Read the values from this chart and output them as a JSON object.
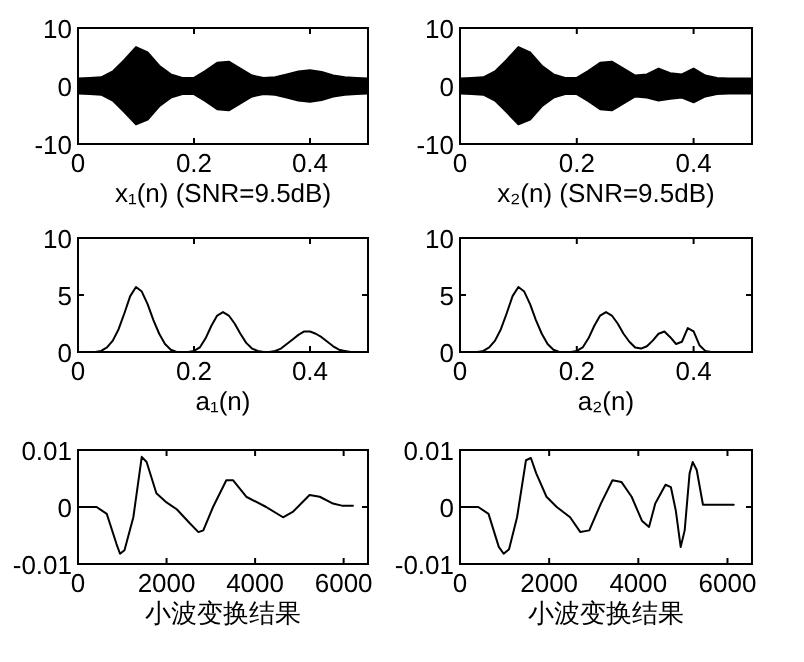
{
  "chart_data": [
    {
      "type": "area",
      "xlabel": "x₁(n) (SNR=9.5dB)",
      "x": [
        0,
        0.02,
        0.04,
        0.06,
        0.08,
        0.1,
        0.12,
        0.14,
        0.16,
        0.18,
        0.2,
        0.22,
        0.24,
        0.26,
        0.28,
        0.3,
        0.32,
        0.34,
        0.36,
        0.38,
        0.4,
        0.42,
        0.44,
        0.46,
        0.48,
        0.5
      ],
      "xlim": [
        0,
        0.5
      ],
      "ylim": [
        -10,
        10
      ],
      "xticks": [
        0,
        0.2,
        0.4
      ],
      "yticks": [
        -10,
        0,
        10
      ],
      "series": [
        {
          "color": "#000000",
          "values": [
            1.3,
            1.4,
            1.5,
            2.5,
            4.5,
            6.7,
            5.8,
            3.5,
            2,
            1.4,
            1.4,
            2.6,
            4,
            4.2,
            3,
            1.8,
            1.4,
            1.5,
            2,
            2.5,
            2.7,
            2.4,
            1.8,
            1.5,
            1.4,
            1.3
          ]
        },
        {
          "color": "#000000",
          "values": [
            -1.3,
            -1.4,
            -1.5,
            -2.5,
            -4.5,
            -6.6,
            -5.8,
            -3.5,
            -2,
            -1.4,
            -1.4,
            -2.6,
            -4,
            -4.2,
            -3,
            -1.8,
            -1.4,
            -1.5,
            -2,
            -2.5,
            -2.7,
            -2.4,
            -1.8,
            -1.5,
            -1.4,
            -1.3
          ]
        }
      ]
    },
    {
      "type": "area",
      "xlabel": "x₂(n) (SNR=9.5dB)",
      "x": [
        0,
        0.02,
        0.04,
        0.06,
        0.08,
        0.1,
        0.12,
        0.14,
        0.16,
        0.18,
        0.2,
        0.22,
        0.24,
        0.26,
        0.28,
        0.3,
        0.32,
        0.34,
        0.36,
        0.38,
        0.4,
        0.42,
        0.44,
        0.46,
        0.48,
        0.5
      ],
      "xlim": [
        0,
        0.5
      ],
      "ylim": [
        -10,
        10
      ],
      "xticks": [
        0,
        0.2,
        0.4
      ],
      "yticks": [
        -10,
        0,
        10
      ],
      "series": [
        {
          "color": "#000000",
          "values": [
            1.3,
            1.4,
            1.5,
            2.5,
            4.5,
            6.7,
            5.8,
            3.5,
            2,
            1.4,
            1.4,
            2.6,
            4,
            4.2,
            3,
            1.8,
            2,
            3,
            2.2,
            2,
            3,
            1.8,
            1.4,
            1.3,
            1.3,
            1.3
          ]
        },
        {
          "color": "#000000",
          "values": [
            -1.3,
            -1.4,
            -1.5,
            -2.5,
            -4.5,
            -6.6,
            -5.8,
            -3.5,
            -2,
            -1.4,
            -1.4,
            -2.6,
            -4,
            -4.2,
            -3,
            -1.8,
            -2,
            -2.5,
            -2.2,
            -2,
            -2.8,
            -1.8,
            -1.4,
            -1.3,
            -1.3,
            -1.3
          ]
        }
      ]
    },
    {
      "type": "line",
      "xlabel": "a₁(n)",
      "x": [
        0,
        0.01,
        0.02,
        0.03,
        0.04,
        0.05,
        0.06,
        0.07,
        0.08,
        0.09,
        0.1,
        0.11,
        0.12,
        0.13,
        0.14,
        0.15,
        0.16,
        0.17,
        0.18,
        0.19,
        0.2,
        0.21,
        0.22,
        0.23,
        0.24,
        0.25,
        0.26,
        0.27,
        0.28,
        0.29,
        0.3,
        0.31,
        0.32,
        0.33,
        0.34,
        0.35,
        0.36,
        0.37,
        0.38,
        0.39,
        0.4,
        0.41,
        0.42,
        0.43,
        0.44,
        0.45,
        0.46,
        0.47,
        0.48,
        0.49,
        0.5
      ],
      "xlim": [
        0,
        0.5
      ],
      "ylim": [
        0,
        10
      ],
      "xticks": [
        0,
        0.2,
        0.4
      ],
      "yticks": [
        0,
        5,
        10
      ],
      "series": [
        {
          "color": "#000000",
          "values": [
            0,
            0,
            0,
            0,
            0.1,
            0.4,
            1,
            2,
            3.4,
            4.9,
            5.7,
            5.3,
            4.2,
            2.8,
            1.6,
            0.7,
            0.2,
            0,
            0,
            0,
            0.1,
            0.4,
            1.2,
            2.3,
            3.2,
            3.5,
            3.2,
            2.5,
            1.6,
            0.8,
            0.3,
            0.1,
            0,
            0,
            0.1,
            0.3,
            0.7,
            1.1,
            1.5,
            1.8,
            1.8,
            1.6,
            1.3,
            0.9,
            0.5,
            0.2,
            0.1,
            0,
            0,
            0,
            0
          ]
        }
      ]
    },
    {
      "type": "line",
      "xlabel": "a₂(n)",
      "x": [
        0,
        0.01,
        0.02,
        0.03,
        0.04,
        0.05,
        0.06,
        0.07,
        0.08,
        0.09,
        0.1,
        0.11,
        0.12,
        0.13,
        0.14,
        0.15,
        0.16,
        0.17,
        0.18,
        0.19,
        0.2,
        0.21,
        0.22,
        0.23,
        0.24,
        0.25,
        0.26,
        0.27,
        0.28,
        0.29,
        0.3,
        0.31,
        0.32,
        0.33,
        0.34,
        0.35,
        0.36,
        0.37,
        0.38,
        0.39,
        0.4,
        0.41,
        0.42,
        0.43,
        0.44,
        0.45,
        0.46,
        0.47,
        0.48,
        0.49,
        0.5
      ],
      "xlim": [
        0,
        0.5
      ],
      "ylim": [
        0,
        10
      ],
      "xticks": [
        0,
        0.2,
        0.4
      ],
      "yticks": [
        0,
        5,
        10
      ],
      "series": [
        {
          "color": "#000000",
          "values": [
            0,
            0,
            0,
            0,
            0.1,
            0.4,
            1,
            2,
            3.4,
            4.9,
            5.7,
            5.3,
            4.2,
            2.8,
            1.6,
            0.7,
            0.2,
            0,
            0,
            0,
            0.1,
            0.4,
            1.2,
            2.3,
            3.2,
            3.5,
            3.2,
            2.5,
            1.6,
            0.9,
            0.4,
            0.3,
            0.5,
            1,
            1.6,
            1.8,
            1.3,
            0.7,
            0.9,
            2.1,
            1.8,
            0.6,
            0.1,
            0,
            0,
            0,
            0,
            0,
            0,
            0,
            0
          ]
        }
      ]
    },
    {
      "type": "line",
      "xlabel": "小波变换结果",
      "x": [
        0,
        420,
        650,
        870,
        950,
        1050,
        1250,
        1440,
        1550,
        1770,
        2000,
        2230,
        2530,
        2720,
        2830,
        3050,
        3350,
        3500,
        3800,
        4250,
        4630,
        4860,
        5230,
        5460,
        5760,
        5980,
        6210
      ],
      "xlim": [
        0,
        6550
      ],
      "ylim": [
        -0.01,
        0.01
      ],
      "xticks": [
        0,
        2000,
        4000,
        6000
      ],
      "yticks": [
        -0.01,
        0,
        0.01
      ],
      "series": [
        {
          "color": "#000000",
          "values": [
            0,
            0,
            -0.0012,
            -0.0065,
            -0.0082,
            -0.0076,
            -0.0018,
            0.0088,
            0.0079,
            0.0024,
            0.0008,
            -0.0004,
            -0.0029,
            -0.0044,
            -0.0041,
            0,
            0.0047,
            0.0047,
            0.0018,
            0,
            -0.0018,
            -0.0008,
            0.0021,
            0.0018,
            0.0006,
            0.0002,
            0.0002
          ]
        }
      ]
    },
    {
      "type": "line",
      "xlabel": "小波变换结果",
      "x": [
        0,
        410,
        640,
        870,
        980,
        1100,
        1280,
        1480,
        1590,
        1710,
        1940,
        2170,
        2470,
        2700,
        2900,
        3160,
        3420,
        3620,
        3850,
        4080,
        4240,
        4380,
        4610,
        4730,
        4840,
        4950,
        5040,
        5150,
        5220,
        5310,
        5450,
        6140
      ],
      "xlim": [
        0,
        6550
      ],
      "ylim": [
        -0.01,
        0.01
      ],
      "xticks": [
        0,
        2000,
        4000,
        6000
      ],
      "yticks": [
        -0.01,
        0,
        0.01
      ],
      "series": [
        {
          "color": "#000000",
          "values": [
            0,
            0,
            -0.0012,
            -0.007,
            -0.0082,
            -0.0074,
            -0.0018,
            0.0082,
            0.0086,
            0.0059,
            0.0018,
            0,
            -0.0018,
            -0.0044,
            -0.0041,
            0.0006,
            0.0047,
            0.0044,
            0.0018,
            -0.0024,
            -0.0035,
            0.0006,
            0.0039,
            0.0035,
            -0.0006,
            -0.007,
            -0.0041,
            0.0059,
            0.0079,
            0.0065,
            0.0004,
            0.0004
          ]
        }
      ]
    }
  ]
}
